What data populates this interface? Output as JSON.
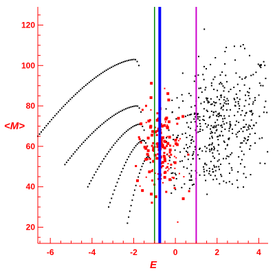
{
  "chart_data": {
    "type": "scatter",
    "xlabel": "E",
    "ylabel": "<M>",
    "xlim": [
      -6.6,
      4.45
    ],
    "ylim": [
      12,
      129
    ],
    "x_ticks": [
      "-6",
      "-4",
      "-2",
      "0",
      "2",
      "4"
    ],
    "y_ticks": [
      "20",
      "40",
      "60",
      "80",
      "100",
      "120"
    ],
    "grid": false,
    "colors": {
      "axis": "#ff0000",
      "series_black": "#000000",
      "series_red": "#ff0000",
      "line_green": "#008800",
      "line_blue": "#0000ff",
      "line_magenta": "#cc00cc"
    },
    "vertical_lines": [
      {
        "x": -1.0,
        "color": "#008800",
        "width": 1.5
      },
      {
        "x": -0.75,
        "color": "#0000ff",
        "width": 4
      },
      {
        "x": 1.0,
        "color": "#cc00cc",
        "width": 2
      }
    ],
    "curves": [
      {
        "x_start": -6.6,
        "x_end": -1.75,
        "y_start": 65,
        "y_end": 103,
        "peak_x": -1.95,
        "n": 60
      },
      {
        "x_start": -5.3,
        "x_end": -1.65,
        "y_start": 51,
        "y_end": 80,
        "peak_x": -1.85,
        "n": 46
      },
      {
        "x_start": -4.2,
        "x_end": -1.5,
        "y_start": 40,
        "y_end": 71,
        "peak_x": -1.7,
        "n": 36
      },
      {
        "x_start": -3.2,
        "x_end": -1.35,
        "y_start": 30,
        "y_end": 63,
        "peak_x": -1.55,
        "n": 28
      },
      {
        "x_start": -2.3,
        "x_end": -1.2,
        "y_start": 22,
        "y_end": 55,
        "peak_x": -1.3,
        "n": 20
      }
    ],
    "cluster_red": {
      "x_center": -0.65,
      "x_spread": 0.55,
      "y_center": 58,
      "y_spread": 12,
      "n": 170
    },
    "cluster_black": {
      "x_center": 2.0,
      "x_spread": 1.4,
      "y_center": 68,
      "y_spread": 16,
      "n": 520
    }
  }
}
